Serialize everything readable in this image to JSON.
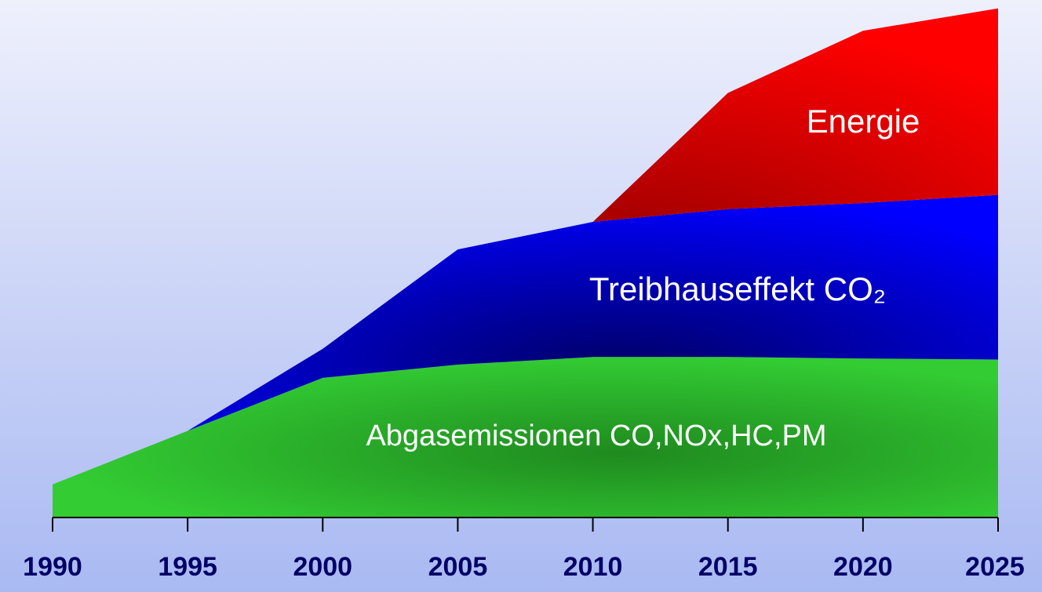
{
  "chart_data": {
    "type": "stacked_area",
    "x": [
      1990,
      1995,
      2000,
      2005,
      2010,
      2015,
      2020,
      2025
    ],
    "series": [
      {
        "name": "Abgasemissionen CO,NOx,HC,PM",
        "color": "#33cc33",
        "values": [
          6.5,
          17,
          27.4,
          30,
          31.5,
          31.5,
          31.2,
          31
        ]
      },
      {
        "name": "Treibhauseffekt CO₂",
        "color": "#0000ff",
        "values": [
          0,
          0,
          5.7,
          22.6,
          26.5,
          29,
          30.5,
          32.3
        ]
      },
      {
        "name": "Energie",
        "color": "#ff0000",
        "values": [
          0,
          0,
          0,
          0,
          0,
          22.8,
          33.8,
          36.6
        ]
      }
    ],
    "xlim": [
      1990,
      2025
    ],
    "xticks": [
      1990,
      1995,
      2000,
      2005,
      2010,
      2015,
      2020,
      2025
    ],
    "ylim": [
      0,
      100
    ]
  }
}
